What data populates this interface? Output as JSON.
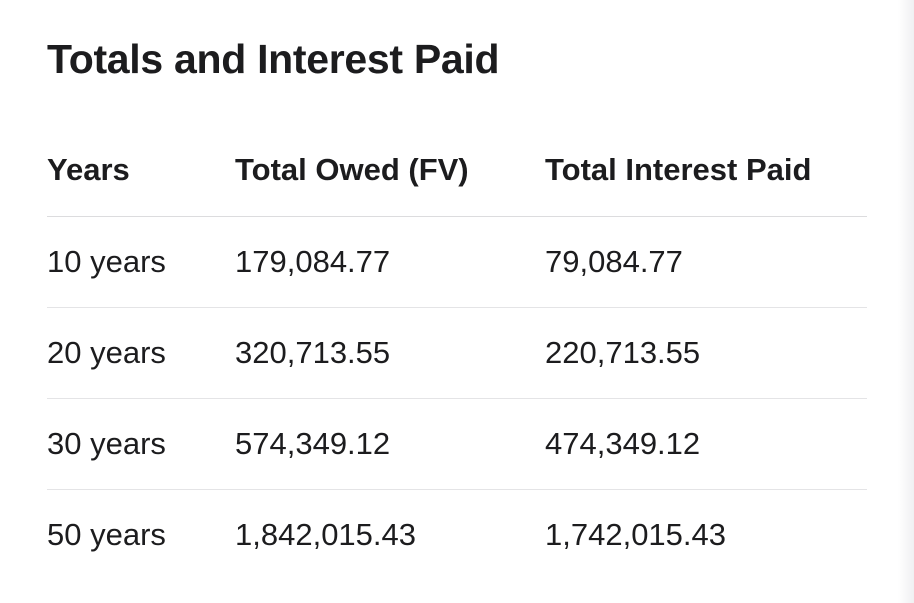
{
  "title": "Totals and Interest Paid",
  "table": {
    "headers": [
      "Years",
      "Total Owed (FV)",
      "Total Interest Paid"
    ],
    "rows": [
      [
        "10 years",
        "179,084.77",
        "79,084.77"
      ],
      [
        "20 years",
        "320,713.55",
        "220,713.55"
      ],
      [
        "30 years",
        "574,349.12",
        "474,349.12"
      ],
      [
        "50 years",
        "1,842,015.43",
        "1,742,015.43"
      ]
    ]
  }
}
